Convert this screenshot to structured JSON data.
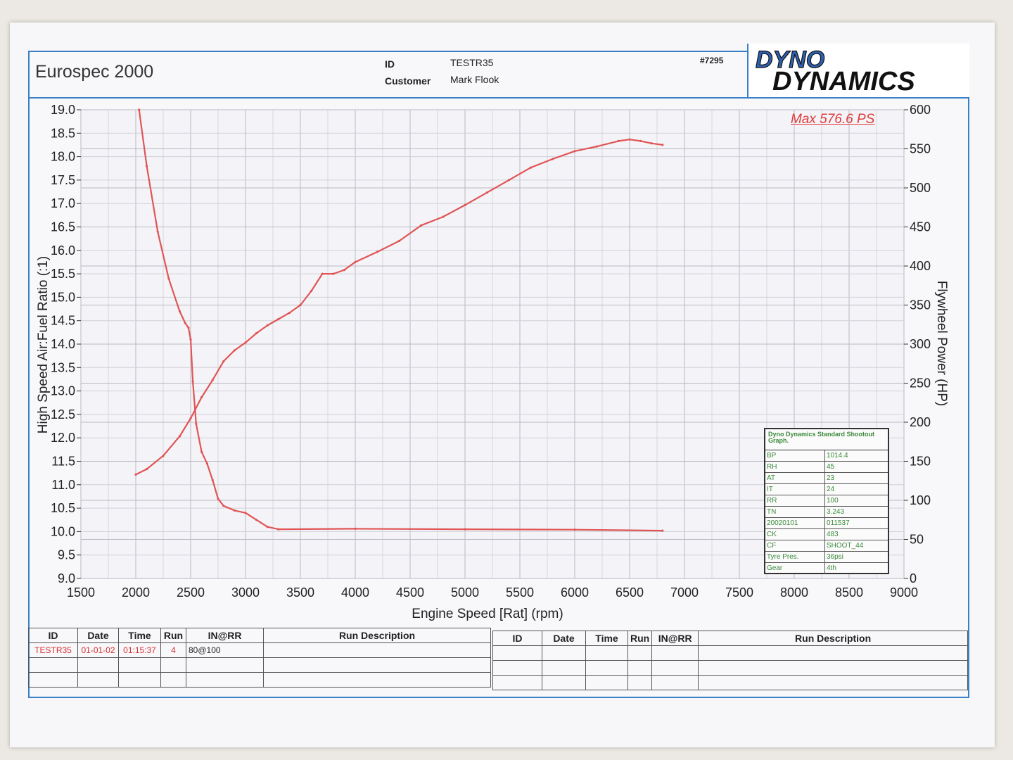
{
  "header": {
    "title": "Eurospec 2000",
    "id_label": "ID",
    "id_value": "TESTR35",
    "customer_label": "Customer",
    "customer_value": "Mark Flook",
    "sheet_number": "#7295",
    "logo_line1": "DYNO",
    "logo_line2": "DYNAMICS"
  },
  "max_label": "Max 576.6 PS",
  "colors": {
    "curve": "#e05555",
    "frame": "#3b7fc4",
    "grid": "#b8b8c0",
    "max_text": "#e03a3a",
    "box_text": "#3a8a3a"
  },
  "chart_data": {
    "type": "line",
    "xlabel": "Engine Speed [Rat] (rpm)",
    "ylabel_left": "High Speed Air:Fuel Ratio (:1)",
    "ylabel_right": "Flywheel Power (HP)",
    "xlim": [
      1500,
      9000
    ],
    "ylim_left": [
      9.0,
      19.0
    ],
    "ylim_right": [
      0,
      600
    ],
    "x_ticks": [
      "1500",
      "2000",
      "2500",
      "3000",
      "3500",
      "4000",
      "4500",
      "5000",
      "5500",
      "6000",
      "6500",
      "7000",
      "7500",
      "8000",
      "8500",
      "9000"
    ],
    "y_left_ticks": [
      "9.0",
      "9.5",
      "10.0",
      "10.5",
      "11.0",
      "11.5",
      "12.0",
      "12.5",
      "13.0",
      "13.5",
      "14.0",
      "14.5",
      "15.0",
      "15.5",
      "16.0",
      "16.5",
      "17.0",
      "17.5",
      "18.0",
      "18.5",
      "19.0"
    ],
    "y_right_ticks": [
      "0",
      "50",
      "100",
      "150",
      "200",
      "250",
      "300",
      "350",
      "400",
      "450",
      "500",
      "550",
      "600"
    ],
    "grid": true,
    "series": [
      {
        "axis": "left",
        "points": [
          [
            2030,
            19.0
          ],
          [
            2100,
            17.8
          ],
          [
            2200,
            16.4
          ],
          [
            2300,
            15.4
          ],
          [
            2400,
            14.7
          ],
          [
            2450,
            14.45
          ],
          [
            2480,
            14.35
          ],
          [
            2500,
            14.1
          ],
          [
            2520,
            13.2
          ],
          [
            2550,
            12.3
          ],
          [
            2600,
            11.7
          ],
          [
            2650,
            11.45
          ],
          [
            2700,
            11.1
          ],
          [
            2750,
            10.7
          ],
          [
            2800,
            10.55
          ],
          [
            2900,
            10.45
          ],
          [
            3000,
            10.4
          ],
          [
            3100,
            10.25
          ],
          [
            3200,
            10.1
          ],
          [
            3300,
            10.05
          ],
          [
            4000,
            10.06
          ],
          [
            5000,
            10.05
          ],
          [
            6000,
            10.04
          ],
          [
            6800,
            10.02
          ]
        ]
      },
      {
        "axis": "right",
        "points": [
          [
            2000,
            133
          ],
          [
            2100,
            140
          ],
          [
            2250,
            157
          ],
          [
            2400,
            182
          ],
          [
            2500,
            205
          ],
          [
            2600,
            232
          ],
          [
            2700,
            254
          ],
          [
            2800,
            278
          ],
          [
            2900,
            292
          ],
          [
            3000,
            302
          ],
          [
            3100,
            314
          ],
          [
            3200,
            324
          ],
          [
            3300,
            332
          ],
          [
            3400,
            340
          ],
          [
            3500,
            350
          ],
          [
            3600,
            368
          ],
          [
            3700,
            390
          ],
          [
            3800,
            390
          ],
          [
            3900,
            395
          ],
          [
            4000,
            405
          ],
          [
            4200,
            418
          ],
          [
            4400,
            432
          ],
          [
            4600,
            452
          ],
          [
            4800,
            463
          ],
          [
            5000,
            478
          ],
          [
            5200,
            494
          ],
          [
            5400,
            510
          ],
          [
            5600,
            526
          ],
          [
            5800,
            537
          ],
          [
            6000,
            547
          ],
          [
            6200,
            553
          ],
          [
            6400,
            560
          ],
          [
            6500,
            562
          ],
          [
            6600,
            560
          ],
          [
            6700,
            557
          ],
          [
            6800,
            555
          ]
        ]
      }
    ]
  },
  "standard_box": {
    "title": "Dyno Dynamics Standard Shootout Graph.",
    "rows": [
      {
        "k": "BP",
        "v": "1014.4"
      },
      {
        "k": "RH",
        "v": "45"
      },
      {
        "k": "AT",
        "v": "23"
      },
      {
        "k": "IT",
        "v": "24"
      },
      {
        "k": "RR",
        "v": "100"
      },
      {
        "k": "TN",
        "v": "3.243"
      },
      {
        "k": "20020101",
        "v": "011537"
      },
      {
        "k": "CK",
        "v": "483"
      },
      {
        "k": "CF",
        "v": "SHOOT_44"
      },
      {
        "k": "Tyre Pres.",
        "v": "36psi"
      },
      {
        "k": "Gear",
        "v": "4th"
      }
    ]
  },
  "run_table": {
    "headers": [
      "ID",
      "Date",
      "Time",
      "Run",
      "IN@RR",
      "Run Description"
    ],
    "rows": [
      {
        "id": "TESTR35",
        "date": "01-01-02",
        "time": "01:15:37",
        "run": "4",
        "inrr": "80@100",
        "desc": ""
      }
    ]
  }
}
